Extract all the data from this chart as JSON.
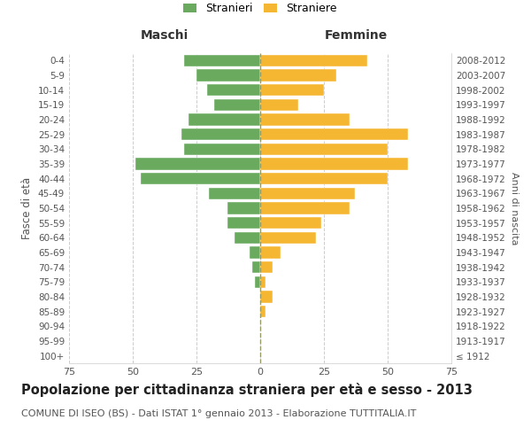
{
  "age_groups": [
    "100+",
    "95-99",
    "90-94",
    "85-89",
    "80-84",
    "75-79",
    "70-74",
    "65-69",
    "60-64",
    "55-59",
    "50-54",
    "45-49",
    "40-44",
    "35-39",
    "30-34",
    "25-29",
    "20-24",
    "15-19",
    "10-14",
    "5-9",
    "0-4"
  ],
  "birth_years": [
    "≤ 1912",
    "1913-1917",
    "1918-1922",
    "1923-1927",
    "1928-1932",
    "1933-1937",
    "1938-1942",
    "1943-1947",
    "1948-1952",
    "1953-1957",
    "1958-1962",
    "1963-1967",
    "1968-1972",
    "1973-1977",
    "1978-1982",
    "1983-1987",
    "1988-1992",
    "1993-1997",
    "1998-2002",
    "2003-2007",
    "2008-2012"
  ],
  "maschi": [
    0,
    0,
    0,
    0,
    0,
    2,
    3,
    4,
    10,
    13,
    13,
    20,
    47,
    49,
    30,
    31,
    28,
    18,
    21,
    25,
    30
  ],
  "femmine": [
    0,
    0,
    0,
    2,
    5,
    2,
    5,
    8,
    22,
    24,
    35,
    37,
    50,
    58,
    50,
    58,
    35,
    15,
    25,
    30,
    42
  ],
  "maschi_color": "#6aaa5e",
  "femmine_color": "#f5b731",
  "background_color": "#ffffff",
  "grid_color": "#cccccc",
  "title": "Popolazione per cittadinanza straniera per età e sesso - 2013",
  "subtitle": "COMUNE DI ISEO (BS) - Dati ISTAT 1° gennaio 2013 - Elaborazione TUTTITALIA.IT",
  "ylabel": "Fasce di età",
  "ylabel_right": "Anni di nascita",
  "xlabel_left": "Maschi",
  "xlabel_right": "Femmine",
  "legend_maschi": "Stranieri",
  "legend_femmine": "Straniere",
  "xlim": 75,
  "title_fontsize": 10.5,
  "subtitle_fontsize": 8,
  "bar_height": 0.8
}
